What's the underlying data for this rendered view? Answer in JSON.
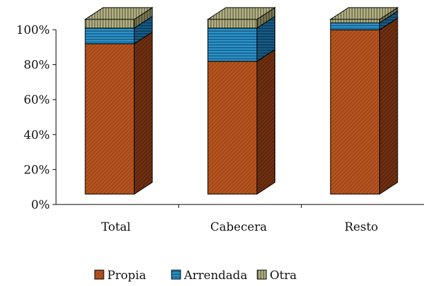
{
  "chart_data": {
    "type": "bar",
    "stacked": true,
    "percent": true,
    "three_d": true,
    "categories": [
      "Total",
      "Cabecera",
      "Resto"
    ],
    "series": [
      {
        "name": "Propia",
        "values": [
          86,
          76,
          94
        ],
        "color": "#b5531f"
      },
      {
        "name": "Arrendada",
        "values": [
          9,
          19,
          4
        ],
        "color": "#1f7fb5"
      },
      {
        "name": "Otra",
        "values": [
          5,
          5,
          2
        ],
        "color": "#a9a87c"
      }
    ],
    "ylim": [
      0,
      100
    ],
    "yticks": [
      "0%",
      "20%",
      "40%",
      "60%",
      "80%",
      "100%"
    ],
    "legend_position": "bottom",
    "grid": false
  }
}
